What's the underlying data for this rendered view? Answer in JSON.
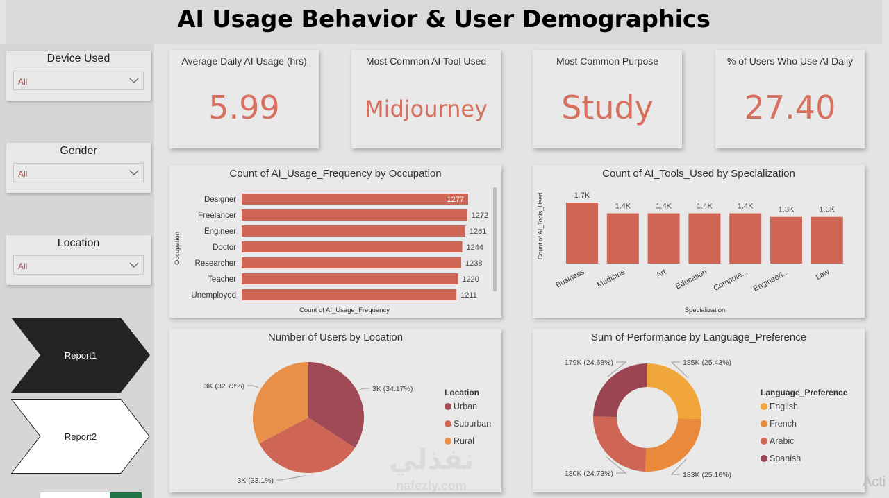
{
  "title": "AI Usage Behavior & User Demographics",
  "slicers": [
    {
      "label": "Device Used",
      "value": "All"
    },
    {
      "label": "Gender",
      "value": "All"
    },
    {
      "label": "Location",
      "value": "All"
    }
  ],
  "nav": {
    "report1": "Report1",
    "report2": "Report2"
  },
  "kpis": [
    {
      "label": "Average Daily AI Usage (hrs)",
      "value": "5.99"
    },
    {
      "label": "Most Common AI Tool Used",
      "value": "Midjourney"
    },
    {
      "label": "Most Common Purpose",
      "value": "Study"
    },
    {
      "label": "% of Users Who Use AI Daily",
      "value": "27.40"
    }
  ],
  "colors": {
    "accent": "#d66f5e",
    "bar": "#cf6655",
    "urban": "#a04a56",
    "suburban": "#cf6655",
    "rural": "#e8904a",
    "english": "#f0a63b",
    "french": "#e8893c",
    "arabic": "#cf6655",
    "spanish": "#9c4552"
  },
  "chart_data": [
    {
      "type": "bar",
      "orientation": "horizontal",
      "title": "Count of AI_Usage_Frequency by Occupation",
      "xlabel": "Count of AI_Usage_Frequency",
      "ylabel": "Occupation",
      "categories": [
        "Designer",
        "Freelancer",
        "Engineer",
        "Doctor",
        "Researcher",
        "Teacher",
        "Unemployed"
      ],
      "values": [
        1277,
        1272,
        1261,
        1244,
        1238,
        1220,
        1211
      ],
      "data_labels": [
        "1277",
        "1272",
        "1261",
        "1244",
        "1238",
        "1220",
        "1211"
      ]
    },
    {
      "type": "bar",
      "title": "Count of AI_Tools_Used by Specialization",
      "xlabel": "Specialization",
      "ylabel": "Count of AI_Tools_Used",
      "categories": [
        "Business",
        "Medicine",
        "Art",
        "Education",
        "Compute...",
        "Engineeri...",
        "Law"
      ],
      "values": [
        1700,
        1400,
        1400,
        1400,
        1400,
        1300,
        1300
      ],
      "data_labels": [
        "1.7K",
        "1.4K",
        "1.4K",
        "1.4K",
        "1.4K",
        "1.3K",
        "1.3K"
      ]
    },
    {
      "type": "pie",
      "title": "Number of Users by Location",
      "legend_title": "Location",
      "legend_position": "right",
      "categories": [
        "Urban",
        "Suburban",
        "Rural"
      ],
      "values": [
        34.17,
        33.1,
        32.73
      ],
      "data_labels": [
        "3K (34.17%)",
        "3K (33.1%)",
        "3K (32.73%)"
      ]
    },
    {
      "type": "pie",
      "subtype": "donut",
      "title": "Sum of Performance by Language_Preference",
      "legend_title": "Language_Preference",
      "legend_position": "right",
      "categories": [
        "English",
        "French",
        "Arabic",
        "Spanish"
      ],
      "values": [
        25.43,
        25.16,
        24.73,
        24.68
      ],
      "data_labels": [
        "185K (25.43%)",
        "183K (25.16%)",
        "180K (24.73%)",
        "179K (24.68%)"
      ]
    }
  ],
  "watermark": {
    "arabic": "نفذلي",
    "latin": "nafezly.com"
  },
  "overlay_text": "Acti"
}
